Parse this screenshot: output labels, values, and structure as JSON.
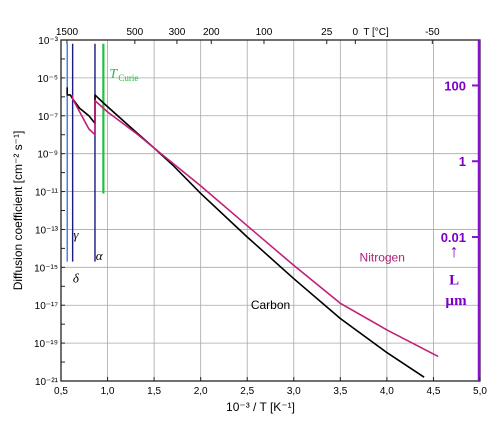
{
  "chart_data": {
    "type": "line",
    "title": "",
    "xlabel": "10⁻³ / T  [K⁻¹]",
    "ylabel": "Diffusion coefficient  [cm⁻² s⁻¹]",
    "top_axis_label": "T [°C]",
    "right_axis_label": "L",
    "right_axis_unit": "µm",
    "xlim": [
      0.5,
      5.0
    ],
    "ylim_log10": [
      -21,
      -3
    ],
    "grid": true,
    "x_ticks": [
      0.5,
      1.0,
      1.5,
      2.0,
      2.5,
      3.0,
      3.5,
      4.0,
      4.5,
      5.0
    ],
    "x_tick_labels": [
      "0,5",
      "1,0",
      "1,5",
      "2,0",
      "2,5",
      "3,0",
      "3,5",
      "4,0",
      "4,5",
      "5,0"
    ],
    "y_ticks_log10": [
      -3,
      -5,
      -7,
      -9,
      -11,
      -13,
      -15,
      -17,
      -19,
      -21
    ],
    "y_tick_labels": [
      "10⁻³",
      "10⁻⁵",
      "10⁻⁷",
      "10⁻⁹",
      "10⁻¹¹",
      "10⁻¹³",
      "10⁻¹⁵",
      "10⁻¹⁷",
      "10⁻¹⁹",
      "10⁻²¹"
    ],
    "top_ticks": [
      {
        "label": "1500",
        "x": 0.564
      },
      {
        "label": "500",
        "x": 1.293
      },
      {
        "label": "300",
        "x": 1.745
      },
      {
        "label": "200",
        "x": 2.114
      },
      {
        "label": "100",
        "x": 2.68
      },
      {
        "label": "25",
        "x": 3.354
      },
      {
        "label": "0",
        "x": 3.661
      },
      {
        "label": "-50",
        "x": 4.488
      }
    ],
    "right_ticks": [
      {
        "label": "100",
        "log10_D": -5.4
      },
      {
        "label": "1",
        "log10_D": -9.4
      },
      {
        "label": "0.01",
        "log10_D": -13.4
      }
    ],
    "vertical_lines": [
      {
        "name": "δ",
        "x": 0.567,
        "y_from": -3.2,
        "y_to": -14.7,
        "color": "#3a7be0"
      },
      {
        "name": "γ",
        "x": 0.625,
        "y_from": -3.2,
        "y_to": -14.7,
        "color": "#1a1a80"
      },
      {
        "name": "α",
        "x": 0.865,
        "y_from": -3.2,
        "y_to": -14.7,
        "color": "#1a1a80"
      },
      {
        "name": "TCurie",
        "x": 0.955,
        "y_from": -3.2,
        "y_to": -11.1,
        "color": "#22c040"
      }
    ],
    "series": [
      {
        "name": "Carbon",
        "color": "#000000",
        "x": [
          0.567,
          0.567,
          0.6,
          0.625,
          0.7,
          0.8,
          0.865,
          0.865,
          0.95,
          1.2,
          1.5,
          1.7,
          2.0,
          2.5,
          3.0,
          3.5,
          4.0,
          4.4
        ],
        "log10_y": [
          -5.5,
          -5.9,
          -5.9,
          -6.1,
          -6.6,
          -7.0,
          -7.4,
          -5.9,
          -6.3,
          -7.4,
          -8.7,
          -9.6,
          -11.1,
          -13.4,
          -15.6,
          -17.7,
          -19.5,
          -20.8
        ]
      },
      {
        "name": "Nitrogen",
        "color": "#c0207a",
        "x": [
          0.625,
          0.625,
          0.8,
          0.865,
          0.865,
          1.0,
          1.3,
          1.6,
          2.0,
          2.5,
          3.0,
          3.5,
          4.0,
          4.55
        ],
        "log10_y": [
          -5.9,
          -6.1,
          -7.7,
          -8.0,
          -6.2,
          -6.8,
          -7.9,
          -9.1,
          -10.7,
          -12.8,
          -14.9,
          -16.9,
          -18.3,
          -19.7
        ]
      }
    ],
    "annotations": [
      {
        "text": "Carbon",
        "x": 2.75,
        "log10_y": -17.2
      },
      {
        "text": "Nitrogen",
        "x": 3.95,
        "log10_y": -14.7
      },
      {
        "text": "γ",
        "x": 0.66,
        "log10_y": -13.5
      },
      {
        "text": "α",
        "x": 0.91,
        "log10_y": -14.6
      },
      {
        "text": "δ",
        "x": 0.66,
        "log10_y": -15.8
      },
      {
        "text": "L",
        "x": 4.98,
        "log10_y": -15.9
      },
      {
        "text": "↑",
        "x": 4.98,
        "log10_y": -13.4
      }
    ],
    "curie_label": "T",
    "curie_subscript": "Curie"
  }
}
